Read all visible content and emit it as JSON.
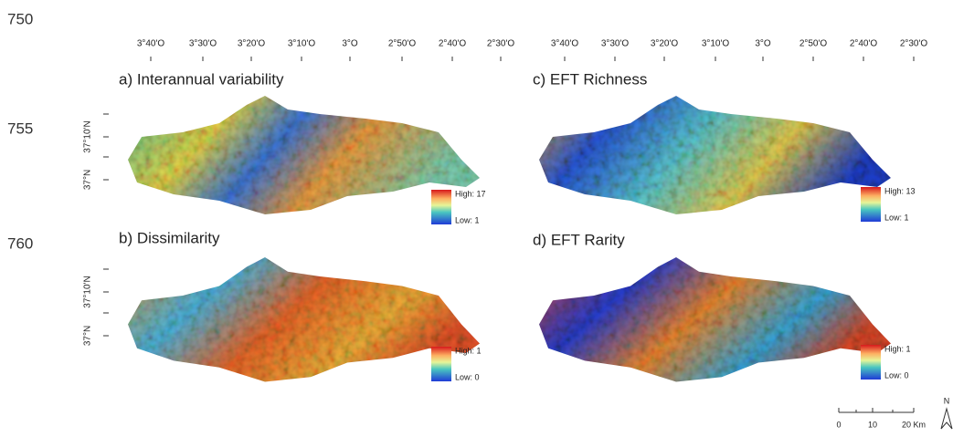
{
  "line_numbers": [
    "750",
    "755",
    "760"
  ],
  "columns": [
    {
      "lon_labels": [
        "3°40'O",
        "3°30'O",
        "3°20'O",
        "3°10'O",
        "3°O",
        "2°50'O",
        "2°40'O",
        "2°30'O"
      ]
    },
    {
      "lon_labels": [
        "3°40'O",
        "3°30'O",
        "3°20'O",
        "3°10'O",
        "3°O",
        "2°50'O",
        "2°40'O",
        "2°30'O"
      ]
    }
  ],
  "rows": [
    {
      "lat_labels": [
        "37°10'N",
        "37°N"
      ]
    },
    {
      "lat_labels": [
        "37°10'N",
        "37°N"
      ]
    }
  ],
  "panels": [
    {
      "title": "a) Interannual variability",
      "legend_high": "High: 17",
      "legend_low": "Low: 1"
    },
    {
      "title": "b) Dissimilarity",
      "legend_high": "High: 1",
      "legend_low": "Low: 0"
    },
    {
      "title": "c) EFT Richness",
      "legend_high": "High: 13",
      "legend_low": "Low: 1"
    },
    {
      "title": "d) EFT Rarity",
      "legend_high": "High: 1",
      "legend_low": "Low: 0"
    }
  ],
  "scale_bar": {
    "labels": [
      "0",
      "10",
      "20 Km"
    ]
  },
  "north_arrow": "N"
}
